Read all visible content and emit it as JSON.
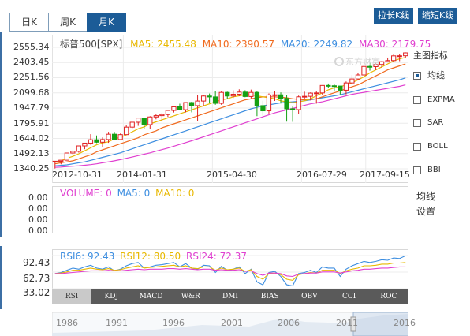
{
  "period_tabs": [
    {
      "label": "日K",
      "active": false
    },
    {
      "label": "周K",
      "active": false
    },
    {
      "label": "月K",
      "active": true
    }
  ],
  "buttons": {
    "stretch": "拉长K线",
    "shrink": "缩短K线"
  },
  "watermark": "东方财富",
  "price_axis": [
    "2555.34",
    "2403.45",
    "2251.56",
    "2099.68",
    "1947.79",
    "1795.91",
    "1644.02",
    "1492.13",
    "1340.25"
  ],
  "date_axis": [
    "2012-10-31",
    "2014-01-31",
    "2015-04-30",
    "2016-07-29",
    "2017-09-15"
  ],
  "legend": {
    "name": "标普500[SPX]",
    "ma5": "MA5: 2455.48",
    "ma10": "MA10: 2390.57",
    "ma20": "MA20: 2249.82",
    "ma30": "MA30: 2179.75"
  },
  "side_menu": {
    "title": "主图指标",
    "items": [
      {
        "label": "均线",
        "checked": true
      },
      {
        "label": "EXPMA",
        "checked": false
      },
      {
        "label": "SAR",
        "checked": false
      },
      {
        "label": "BOLL",
        "checked": false
      },
      {
        "label": "BBI",
        "checked": false
      }
    ],
    "settings_line1": "均线",
    "settings_line2": "设置"
  },
  "volume_axis": [
    "0.00",
    "0.00",
    "0.00",
    "0.00"
  ],
  "volume_legend": {
    "volume": "VOLUME: 0",
    "ma5": "MA5: 0",
    "ma10": "MA10: 0"
  },
  "rsi_axis": [
    "92.43",
    "62.73",
    "33.02"
  ],
  "rsi_legend": {
    "rsi6": "RSI6: 92.43",
    "rsi12": "RSI12: 80.50",
    "rsi24": "RSI24: 72.37"
  },
  "indicator_tabs": [
    "RSI",
    "KDJ",
    "MACD",
    "W&R",
    "DMI",
    "BIAS",
    "OBV",
    "CCI",
    "ROC"
  ],
  "timeline_years": [
    "1986",
    "1991",
    "1996",
    "2001",
    "2006",
    "2011",
    "2016"
  ],
  "colors": {
    "up": "#e02020",
    "down": "#14a014",
    "ma5": "#e8b800",
    "ma10": "#f06a1e",
    "ma20": "#3d8ee0",
    "ma30": "#e040d0",
    "rsi6": "#3d8ee0",
    "rsi12": "#e8b800",
    "rsi24": "#e040d0",
    "accent": "#1c5c97"
  },
  "chart_data": {
    "type": "candlestick",
    "title": "标普500[SPX]",
    "ylim": [
      1340.25,
      2555.34
    ],
    "x_labels": [
      "2012-10-31",
      "2014-01-31",
      "2015-04-30",
      "2016-07-29",
      "2017-09-15"
    ],
    "candles": [
      [
        1412,
        1416,
        1343,
        1416
      ],
      [
        1416,
        1426,
        1385,
        1426
      ],
      [
        1426,
        1498,
        1426,
        1498
      ],
      [
        1498,
        1524,
        1485,
        1515
      ],
      [
        1515,
        1570,
        1501,
        1569
      ],
      [
        1569,
        1597,
        1536,
        1597
      ],
      [
        1597,
        1687,
        1581,
        1631
      ],
      [
        1631,
        1674,
        1598,
        1606
      ],
      [
        1606,
        1654,
        1560,
        1633
      ],
      [
        1633,
        1710,
        1600,
        1686
      ],
      [
        1686,
        1709,
        1627,
        1633
      ],
      [
        1633,
        1693,
        1630,
        1682
      ],
      [
        1682,
        1775,
        1680,
        1757
      ],
      [
        1757,
        1808,
        1746,
        1806
      ],
      [
        1806,
        1850,
        1770,
        1848
      ],
      [
        1848,
        1850,
        1737,
        1782
      ],
      [
        1782,
        1867,
        1737,
        1859
      ],
      [
        1859,
        1884,
        1835,
        1872
      ],
      [
        1872,
        1897,
        1814,
        1883
      ],
      [
        1883,
        1925,
        1859,
        1924
      ],
      [
        1924,
        1968,
        1903,
        1960
      ],
      [
        1960,
        1991,
        1932,
        1931
      ],
      [
        1931,
        2005,
        1904,
        2003
      ],
      [
        2003,
        2011,
        1905,
        1972
      ],
      [
        1972,
        2075,
        1821,
        2018
      ],
      [
        2018,
        2075,
        1972,
        2068
      ],
      [
        2068,
        2093,
        2001,
        2059
      ],
      [
        2059,
        2119,
        1981,
        1995
      ],
      [
        1995,
        2115,
        1980,
        2104
      ],
      [
        2104,
        2111,
        2040,
        2068
      ],
      [
        2068,
        2125,
        2048,
        2086
      ],
      [
        2086,
        2135,
        2067,
        2107
      ],
      [
        2107,
        2126,
        2056,
        2063
      ],
      [
        2063,
        2132,
        2044,
        2104
      ],
      [
        2104,
        2113,
        1867,
        1972
      ],
      [
        1972,
        2021,
        1871,
        1920
      ],
      [
        1920,
        2094,
        1893,
        2079
      ],
      [
        2079,
        2116,
        2019,
        2080
      ],
      [
        2080,
        2104,
        1993,
        2044
      ],
      [
        2044,
        2075,
        1812,
        1940
      ],
      [
        1940,
        1962,
        1810,
        1932
      ],
      [
        1932,
        2072,
        1891,
        2060
      ],
      [
        2060,
        2111,
        2039,
        2065
      ],
      [
        2065,
        2104,
        2025,
        2097
      ],
      [
        2097,
        2121,
        1992,
        2099
      ],
      [
        2099,
        2177,
        2074,
        2174
      ],
      [
        2174,
        2193,
        2147,
        2171
      ],
      [
        2171,
        2188,
        2119,
        2168
      ],
      [
        2168,
        2169,
        2084,
        2126
      ],
      [
        2126,
        2214,
        2084,
        2199
      ],
      [
        2199,
        2278,
        2187,
        2239
      ],
      [
        2239,
        2300,
        2233,
        2279
      ],
      [
        2279,
        2371,
        2267,
        2364
      ],
      [
        2364,
        2401,
        2322,
        2362
      ],
      [
        2362,
        2399,
        2328,
        2384
      ],
      [
        2384,
        2418,
        2352,
        2412
      ],
      [
        2412,
        2453,
        2405,
        2423
      ],
      [
        2423,
        2484,
        2407,
        2470
      ],
      [
        2470,
        2491,
        2417,
        2471
      ],
      [
        2471,
        2505,
        2446,
        2500
      ]
    ],
    "ma_series": [
      {
        "name": "MA5",
        "values": [
          1405,
          1420,
          1445,
          1465,
          1490,
          1520,
          1550,
          1580,
          1600,
          1610,
          1640,
          1655,
          1680,
          1710,
          1740,
          1760,
          1790,
          1810,
          1830,
          1850,
          1870,
          1890,
          1910,
          1930,
          1950,
          1970,
          1990,
          2010,
          2030,
          2040,
          2060,
          2070,
          2080,
          2080,
          2070,
          2060,
          2050,
          2040,
          2020,
          2010,
          2000,
          2010,
          2020,
          2040,
          2070,
          2100,
          2130,
          2150,
          2160,
          2180,
          2200,
          2230,
          2260,
          2300,
          2330,
          2360,
          2390,
          2420,
          2440,
          2455
        ]
      },
      {
        "name": "MA10",
        "values": [
          1390,
          1400,
          1410,
          1420,
          1440,
          1460,
          1480,
          1510,
          1530,
          1550,
          1570,
          1590,
          1610,
          1630,
          1650,
          1680,
          1700,
          1720,
          1750,
          1770,
          1790,
          1810,
          1830,
          1850,
          1870,
          1890,
          1910,
          1930,
          1950,
          1970,
          1990,
          2010,
          2030,
          2040,
          2050,
          2060,
          2060,
          2060,
          2055,
          2050,
          2040,
          2035,
          2030,
          2035,
          2040,
          2060,
          2080,
          2100,
          2120,
          2140,
          2160,
          2180,
          2210,
          2240,
          2270,
          2300,
          2330,
          2350,
          2370,
          2390
        ]
      },
      {
        "name": "MA20",
        "values": [
          1370,
          1375,
          1380,
          1390,
          1400,
          1410,
          1425,
          1440,
          1455,
          1470,
          1485,
          1500,
          1520,
          1540,
          1560,
          1580,
          1600,
          1620,
          1640,
          1660,
          1680,
          1700,
          1720,
          1740,
          1760,
          1780,
          1800,
          1820,
          1840,
          1860,
          1880,
          1900,
          1920,
          1940,
          1955,
          1970,
          1980,
          1990,
          2000,
          2005,
          2010,
          2015,
          2020,
          2030,
          2040,
          2050,
          2060,
          2070,
          2080,
          2095,
          2110,
          2125,
          2140,
          2155,
          2170,
          2185,
          2200,
          2215,
          2230,
          2250
        ]
      },
      {
        "name": "MA30",
        "values": [
          1355,
          1358,
          1362,
          1366,
          1370,
          1376,
          1382,
          1390,
          1400,
          1410,
          1420,
          1432,
          1445,
          1458,
          1472,
          1486,
          1500,
          1516,
          1532,
          1548,
          1566,
          1584,
          1602,
          1620,
          1640,
          1660,
          1680,
          1700,
          1720,
          1740,
          1760,
          1780,
          1800,
          1820,
          1840,
          1860,
          1880,
          1900,
          1915,
          1930,
          1945,
          1960,
          1975,
          1990,
          2000,
          2010,
          2025,
          2040,
          2055,
          2070,
          2085,
          2095,
          2105,
          2115,
          2125,
          2135,
          2145,
          2155,
          2165,
          2180
        ]
      }
    ],
    "rsi_ylim": [
      33.02,
      92.43
    ],
    "rsi_series": [
      {
        "name": "RSI6",
        "values": [
          60,
          62,
          66,
          70,
          68,
          72,
          75,
          70,
          68,
          72,
          65,
          68,
          74,
          78,
          80,
          70,
          72,
          75,
          76,
          78,
          80,
          72,
          78,
          70,
          68,
          75,
          74,
          62,
          73,
          66,
          68,
          72,
          60,
          68,
          45,
          40,
          62,
          64,
          55,
          40,
          38,
          60,
          62,
          66,
          62,
          72,
          70,
          70,
          55,
          68,
          74,
          78,
          82,
          80,
          82,
          85,
          84,
          88,
          87,
          92
        ]
      },
      {
        "name": "RSI12",
        "values": [
          60,
          61,
          63,
          66,
          66,
          68,
          70,
          68,
          67,
          69,
          66,
          67,
          70,
          72,
          74,
          70,
          71,
          72,
          73,
          74,
          75,
          72,
          74,
          70,
          69,
          72,
          72,
          66,
          70,
          67,
          68,
          70,
          64,
          67,
          55,
          50,
          60,
          61,
          58,
          50,
          48,
          58,
          60,
          62,
          61,
          66,
          66,
          66,
          60,
          65,
          68,
          70,
          74,
          74,
          75,
          77,
          77,
          79,
          79,
          80
        ]
      },
      {
        "name": "RSI24",
        "values": [
          60,
          60,
          61,
          62,
          63,
          64,
          65,
          65,
          65,
          66,
          65,
          65,
          66,
          67,
          68,
          67,
          68,
          68,
          68,
          69,
          69,
          68,
          69,
          68,
          67,
          68,
          68,
          66,
          67,
          66,
          66,
          67,
          64,
          65,
          60,
          57,
          61,
          61,
          60,
          56,
          55,
          59,
          60,
          61,
          61,
          63,
          63,
          63,
          61,
          63,
          65,
          66,
          68,
          68,
          69,
          70,
          70,
          71,
          72,
          72
        ]
      }
    ],
    "volume_series": [
      {
        "name": "VOLUME",
        "value": 0
      },
      {
        "name": "MA5",
        "value": 0
      },
      {
        "name": "MA10",
        "value": 0
      }
    ],
    "grid": true
  }
}
